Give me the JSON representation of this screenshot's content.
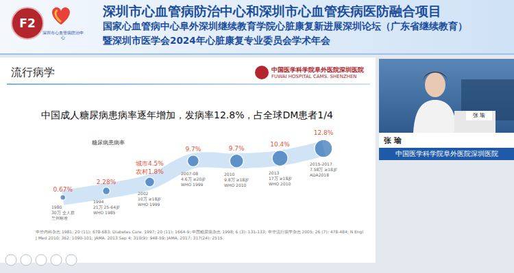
{
  "banner": {
    "logo_mark": "F2",
    "logo_text": "深圳市心血管病防治中心",
    "lines": [
      "深圳市心血管病防治中心和深圳市心血管疾病医防融合项目",
      "国家心血管病中心阜外深圳继续教育学院心脏康复新进展深圳论坛（广东省继续教育）",
      "暨深圳市医学会2024年心脏康复专业委员会学术年会"
    ]
  },
  "slide": {
    "title": "流行病学",
    "logo": {
      "name": "中国医学科学院阜外医院深圳医院",
      "name_en": "FUWAI HOSPITAL CAMS. SHENZHEN"
    },
    "heading": "中国成人糖尿病患病率逐年增加，发病率12.8%，占全球DM患者1/4",
    "references": "中华内科杂志 1981; 20 (11): 678-683; Diabetes Care. 1997; 20 (11): 1664-9; 中国糖尿病杂志 1998; 6 (3): 131-133; 中华流行病学杂志 2005; 26 (7): 478-484; N Engl J Med 2010; 362: 1090-101; JAMA. 2013 Sep 4; 310(9): 948-59; JAMA. 2017; 317(24): 2515."
  },
  "speaker": {
    "card_name": "张 瑜",
    "name": "张 瑜",
    "affiliation": "中国医学科学院阜外医院深圳医院"
  },
  "chart_data": {
    "type": "line",
    "categories": [
      "1980",
      "1994",
      "2002",
      "2007-08",
      "2010",
      "2013",
      "2015-2017"
    ],
    "details": [
      "30万 全人群\n兰州标准",
      "21万 25-64岁\nWHO 1985",
      "10万 ≥18岁\nWHO 1999",
      "4.6万 ≥20岁\nWHO 1999",
      "9.8万 ≥18岁\nWHO 2010",
      "17万 ≥18岁\nWHO 2010",
      "7.58万 ≥18岁\nADA2018"
    ],
    "series": [
      {
        "name": "糖尿病患病率",
        "color": "#2f6eb5",
        "values": [
          0.67,
          2.28,
          4.5,
          9.7,
          9.7,
          10.4,
          12.8
        ],
        "value_labels": [
          "0.67%",
          "2.28%",
          "城市4.5%\n农村1.8%",
          "9.7%",
          "9.7%",
          "10.4%",
          "12.8%"
        ]
      }
    ],
    "ylim": [
      -6,
      15
    ],
    "tick_labels": false,
    "grid": false,
    "data_labels": true,
    "marker": "circle"
  }
}
